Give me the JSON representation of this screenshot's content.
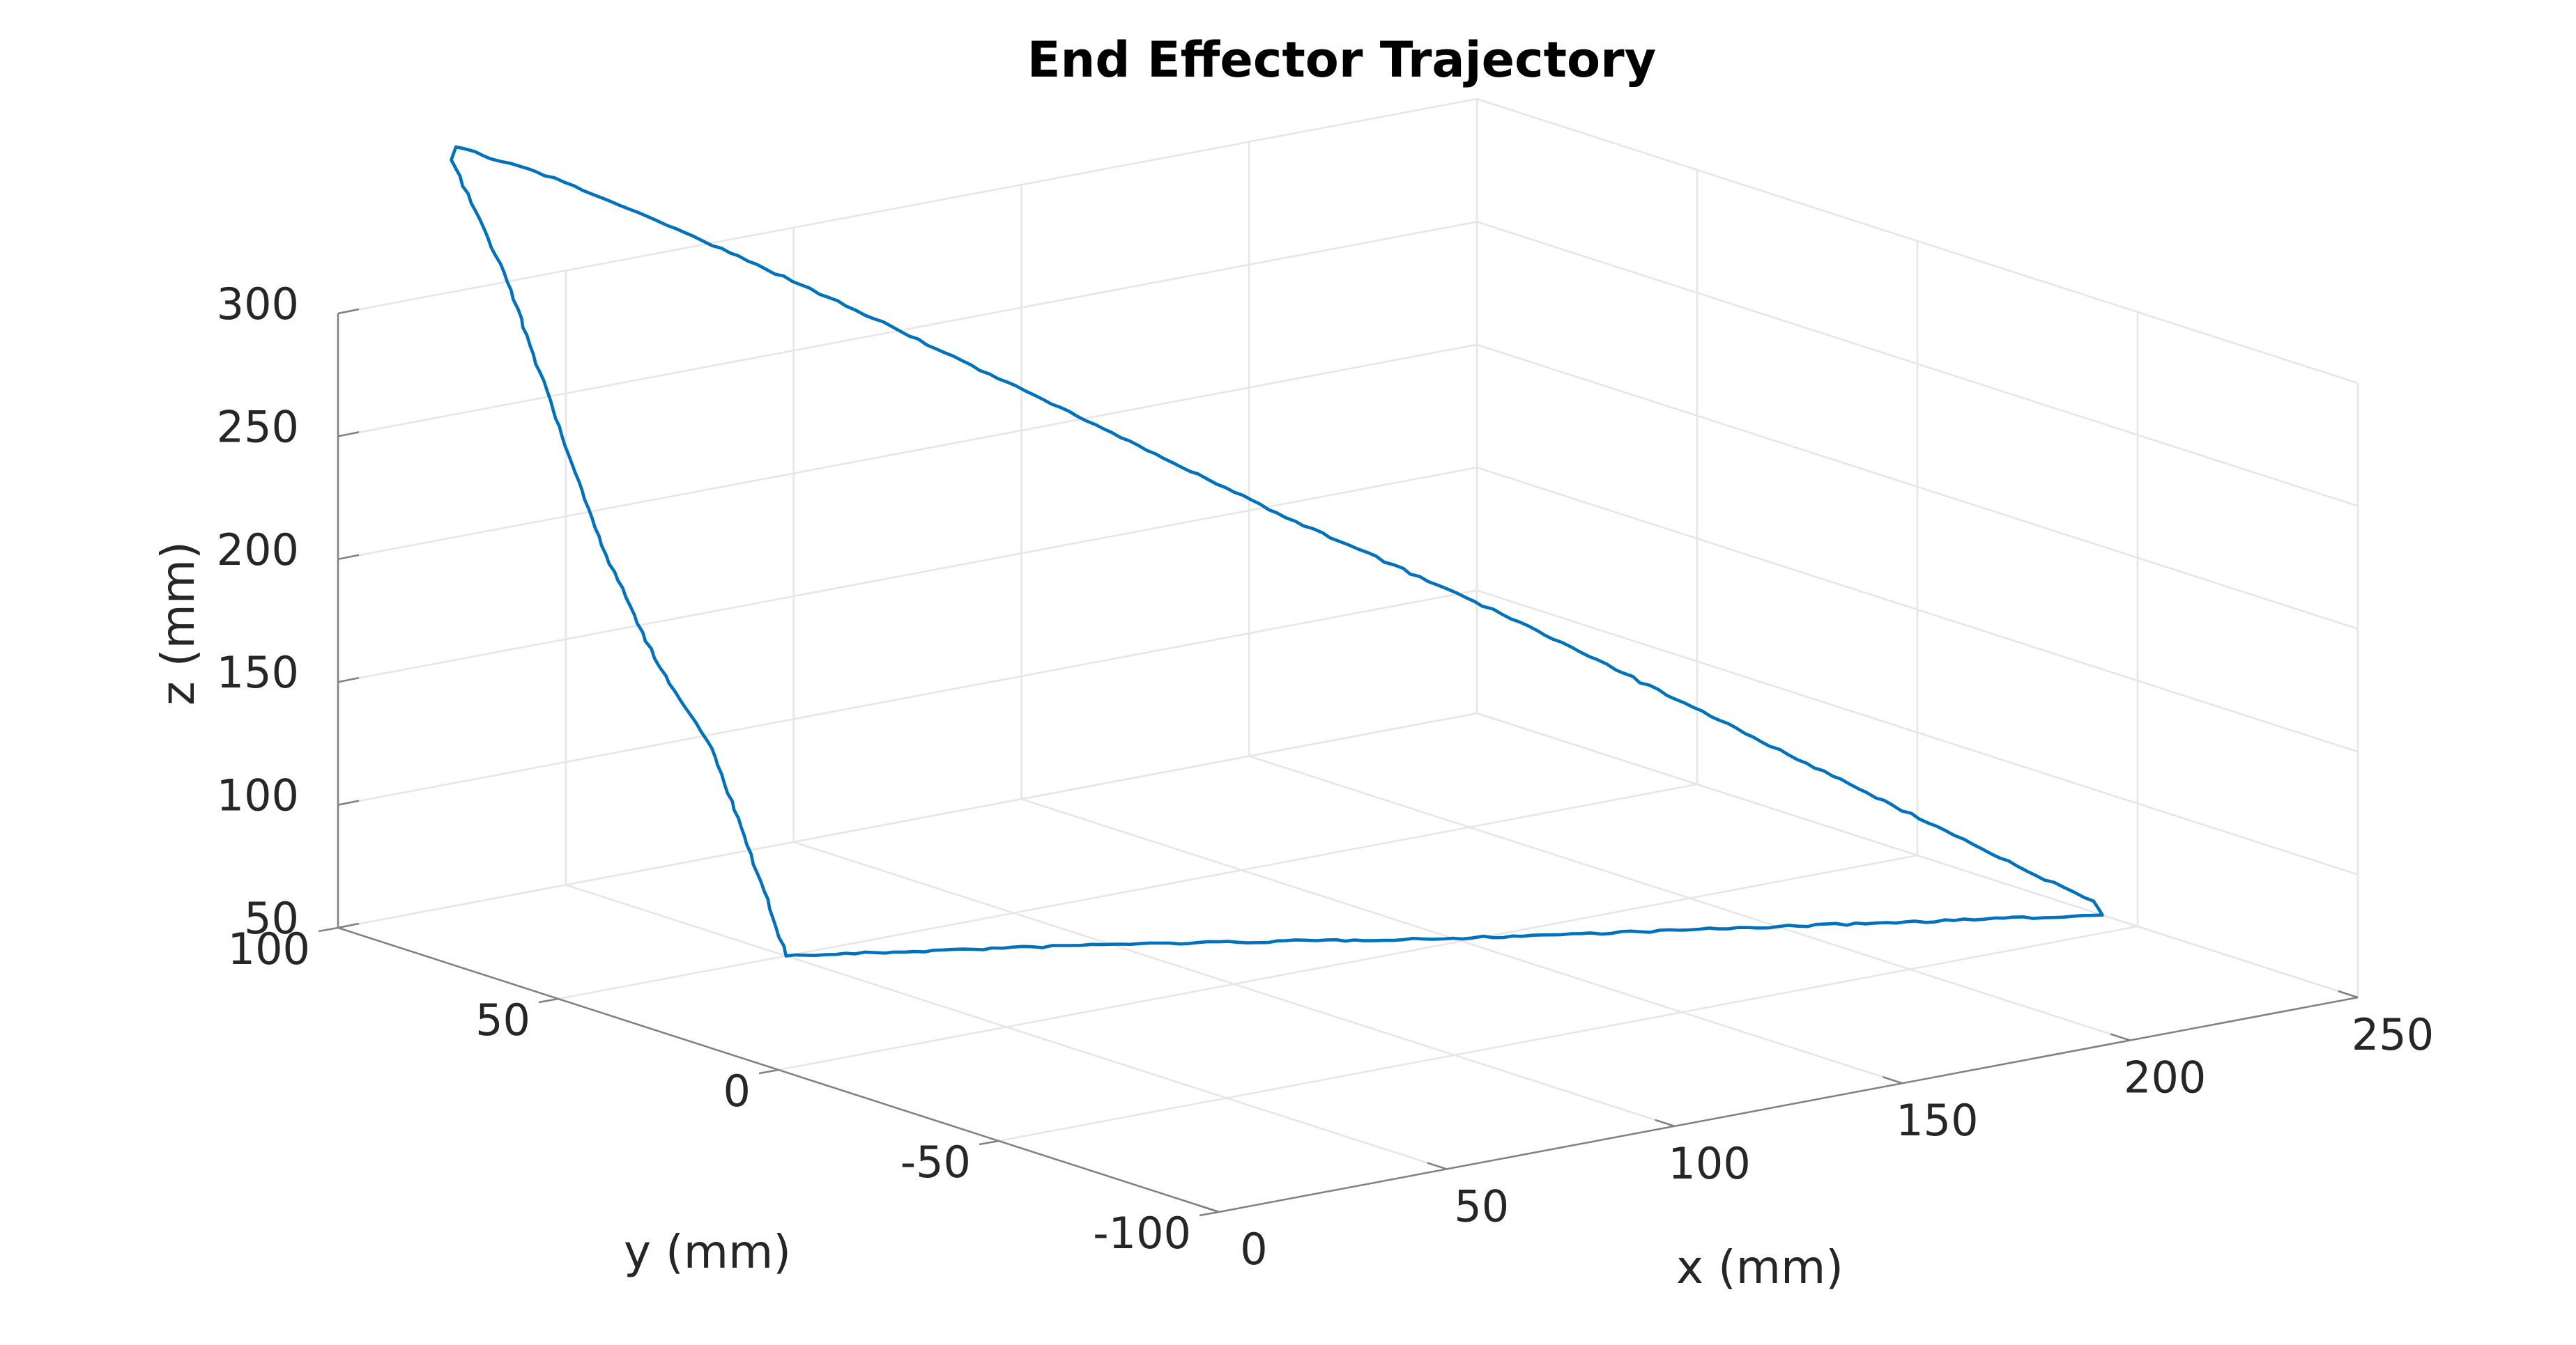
{
  "chart_data": {
    "type": "line",
    "projection": "3d",
    "title": "End Effector Trajectory",
    "xlabel": "x (mm)",
    "ylabel": "y (mm)",
    "zlabel": "z (mm)",
    "xlim": [
      0,
      250
    ],
    "ylim": [
      -100,
      100
    ],
    "zlim": [
      50,
      300
    ],
    "xticks": [
      0,
      50,
      100,
      150,
      200,
      250
    ],
    "yticks": [
      -100,
      -50,
      0,
      50,
      100
    ],
    "zticks": [
      50,
      100,
      150,
      200,
      250,
      300
    ],
    "xtick_labels": [
      "0",
      "50",
      "100",
      "150",
      "200",
      "250"
    ],
    "ytick_labels": [
      "-100",
      "-50",
      "0",
      "50",
      "100"
    ],
    "ztick_labels": [
      "50",
      "100",
      "150",
      "200",
      "250",
      "300"
    ],
    "grid": true,
    "series": [
      {
        "color": "#0072bd",
        "x": [
          50,
          100,
          150,
          200,
          250,
          249.5,
          246,
          242,
          232,
          212,
          179,
          150,
          120,
          96,
          78,
          64,
          52,
          50,
          51,
          52,
          53,
          54,
          55,
          52,
          50
        ],
        "y": [
          50,
          28,
          2,
          -20,
          -42,
          -40.5,
          -37.4,
          -35,
          -27,
          -10,
          17,
          42,
          68,
          88,
          104,
          117,
          127,
          126,
          115,
          105,
          95,
          84,
          72,
          60,
          50
        ],
        "z": [
          50,
          50,
          50,
          50,
          50,
          55,
          60,
          65,
          80,
          110,
          160,
          200,
          245,
          280,
          305,
          323,
          334,
          330,
          290,
          240,
          190,
          150,
          120,
          85,
          50
        ]
      }
    ]
  }
}
